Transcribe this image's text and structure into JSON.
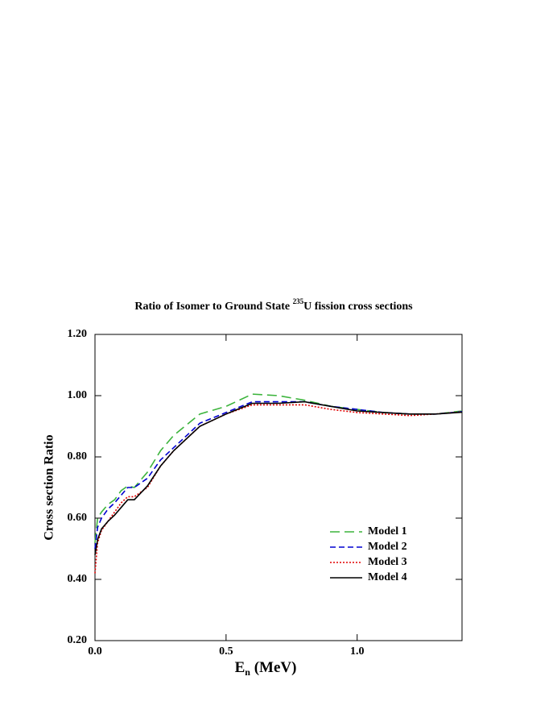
{
  "chart_data": {
    "type": "line",
    "title": [
      "Ratio of Isomer to Ground State ",
      "235",
      "U fission cross sections"
    ],
    "x_label": [
      "E",
      "n",
      " (MeV)"
    ],
    "y_label": "Cross section Ratio",
    "x": [
      0,
      0.01,
      0.025,
      0.05,
      0.075,
      0.1,
      0.125,
      0.15,
      0.2,
      0.25,
      0.3,
      0.4,
      0.5,
      0.6,
      0.7,
      0.8,
      0.9,
      1.0,
      1.1,
      1.2,
      1.3,
      1.4
    ],
    "series": [
      {
        "name": "Model 1",
        "color": "#3cb43c",
        "dash": "12,6",
        "values": [
          0.52,
          0.6,
          0.62,
          0.645,
          0.66,
          0.69,
          0.705,
          0.7,
          0.75,
          0.82,
          0.87,
          0.94,
          0.965,
          1.005,
          1.0,
          0.985,
          0.965,
          0.955,
          0.945,
          0.94,
          0.94,
          0.95
        ]
      },
      {
        "name": "Model 2",
        "color": "#0000d0",
        "dash": "7,4",
        "values": [
          0.5,
          0.57,
          0.6,
          0.63,
          0.65,
          0.675,
          0.7,
          0.7,
          0.73,
          0.79,
          0.83,
          0.91,
          0.945,
          0.98,
          0.98,
          0.98,
          0.965,
          0.955,
          0.945,
          0.94,
          0.94,
          0.948
        ]
      },
      {
        "name": "Model 3",
        "color": "#e00000",
        "dash": "2,2",
        "values": [
          0.42,
          0.52,
          0.56,
          0.59,
          0.62,
          0.65,
          0.67,
          0.67,
          0.7,
          0.77,
          0.82,
          0.9,
          0.94,
          0.97,
          0.97,
          0.97,
          0.955,
          0.945,
          0.94,
          0.935,
          0.94,
          0.947
        ]
      },
      {
        "name": "Model 4",
        "color": "#000000",
        "dash": "none",
        "values": [
          0.48,
          0.53,
          0.565,
          0.59,
          0.61,
          0.635,
          0.66,
          0.66,
          0.705,
          0.77,
          0.82,
          0.9,
          0.94,
          0.975,
          0.975,
          0.98,
          0.965,
          0.95,
          0.945,
          0.94,
          0.94,
          0.946
        ]
      }
    ],
    "xlim": [
      0,
      1.4
    ],
    "xticks": [
      {
        "value": 0,
        "label": "0.0"
      },
      {
        "value": 0.5,
        "label": "0.5"
      },
      {
        "value": 1,
        "label": "1.0"
      }
    ],
    "ylim": [
      0.2,
      1.2
    ],
    "yticks": [
      {
        "value": 0.2,
        "label": "0.20"
      },
      {
        "value": 0.4,
        "label": "0.40"
      },
      {
        "value": 0.6,
        "label": "0.60"
      },
      {
        "value": 0.8,
        "label": "0.80"
      },
      {
        "value": 1,
        "label": "1.00"
      },
      {
        "value": 1.2,
        "label": "1.20"
      }
    ],
    "legend": "lower right"
  }
}
